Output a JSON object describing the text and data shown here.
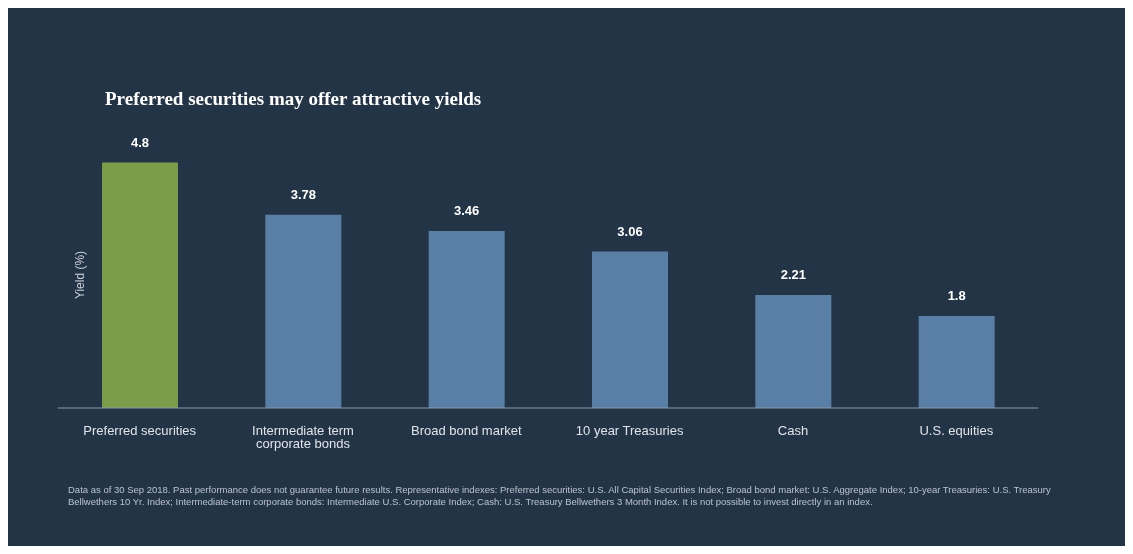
{
  "chart_data": {
    "type": "bar",
    "title": "Preferred securities may offer attractive yields",
    "ylabel": "Yield (%)",
    "categories": [
      "Preferred securities",
      "Intermediate term corporate bonds",
      "Broad bond market",
      "10 year Treasuries",
      "Cash",
      "U.S. equities"
    ],
    "values": [
      4.8,
      3.78,
      3.46,
      3.06,
      2.21,
      1.8
    ],
    "colors": [
      "#7b9c4a",
      "#5a7fa7",
      "#5a7fa7",
      "#5a7fa7",
      "#5a7fa7",
      "#5a7fa7"
    ],
    "data_labels": true,
    "grid": false,
    "legend": false,
    "annotations": [
      "Data as of 30 Sep 2018. Past performance does not guarantee future results. Representative indexes: Preferred securities: U.S. All Capital Securities Index; Broad bond market: U.S. Aggregate Index; 10-year Treasuries: U.S. Treasury Bellwethers 10 Yr. Index; Intermediate-term corporate bonds: Intermediate U.S. Corporate Index; Cash: U.S. Treasury Bellwethers 3 Month Index. It is not possible to invest directly in an index."
    ]
  }
}
